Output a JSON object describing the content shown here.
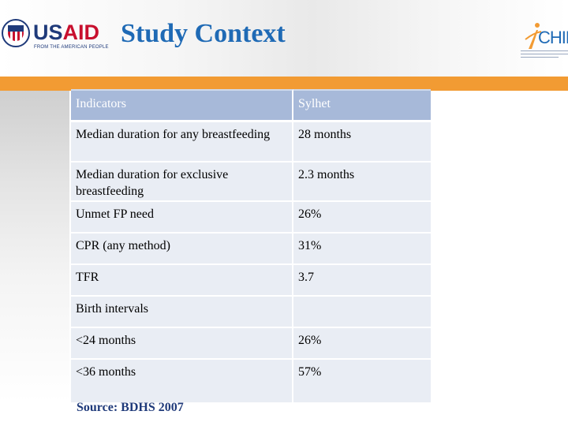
{
  "header": {
    "title": "Study Context",
    "usaid_logo": {
      "text": "USAID",
      "tagline": "FROM THE AMERICAN PEOPLE"
    },
    "chip_logo": {
      "text": "CHIP"
    }
  },
  "table": {
    "headers": [
      "Indicators",
      "Sylhet"
    ],
    "rows": [
      {
        "indicator": "Median duration for any breastfeeding",
        "value": "28 months"
      },
      {
        "indicator": "Median duration for exclusive breastfeeding",
        "value": "2.3 months"
      },
      {
        "indicator": "Unmet FP need",
        "value": "26%"
      },
      {
        "indicator": "CPR (any method)",
        "value": "31%"
      },
      {
        "indicator": "TFR",
        "value": "3.7"
      },
      {
        "indicator": "Birth intervals",
        "value": ""
      },
      {
        "indicator": "<24 months",
        "value": "26%"
      },
      {
        "indicator": "<36 months",
        "value": "57%"
      }
    ]
  },
  "footer": {
    "source": "Source: BDHS 2007"
  },
  "colors": {
    "title": "#1f6ab5",
    "accent_band": "#f29b33",
    "table_header": "#a7b9d9",
    "table_cell": "#e9edf4",
    "usaid_blue": "#1f3a7a",
    "usaid_red": "#c8102e"
  }
}
